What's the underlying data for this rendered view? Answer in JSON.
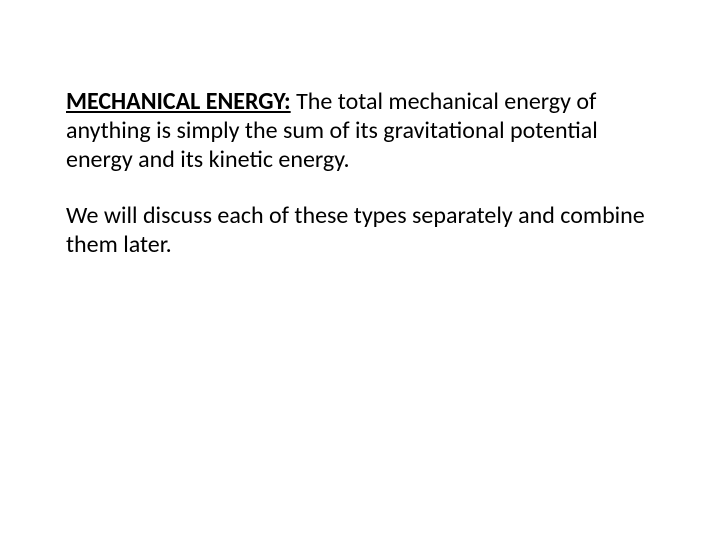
{
  "slide": {
    "background_color": "#ffffff",
    "text_color": "#000000",
    "font_family": "Calibri, Arial, sans-serif",
    "font_size_pt": 24,
    "paragraphs": {
      "p1": {
        "heading": "MECHANICAL ENERGY:",
        "body": " The total mechanical energy of anything is simply the sum of its gravitational potential energy and its kinetic energy."
      },
      "p2": {
        "body": "We will discuss each of these types separately and combine them later."
      }
    }
  }
}
